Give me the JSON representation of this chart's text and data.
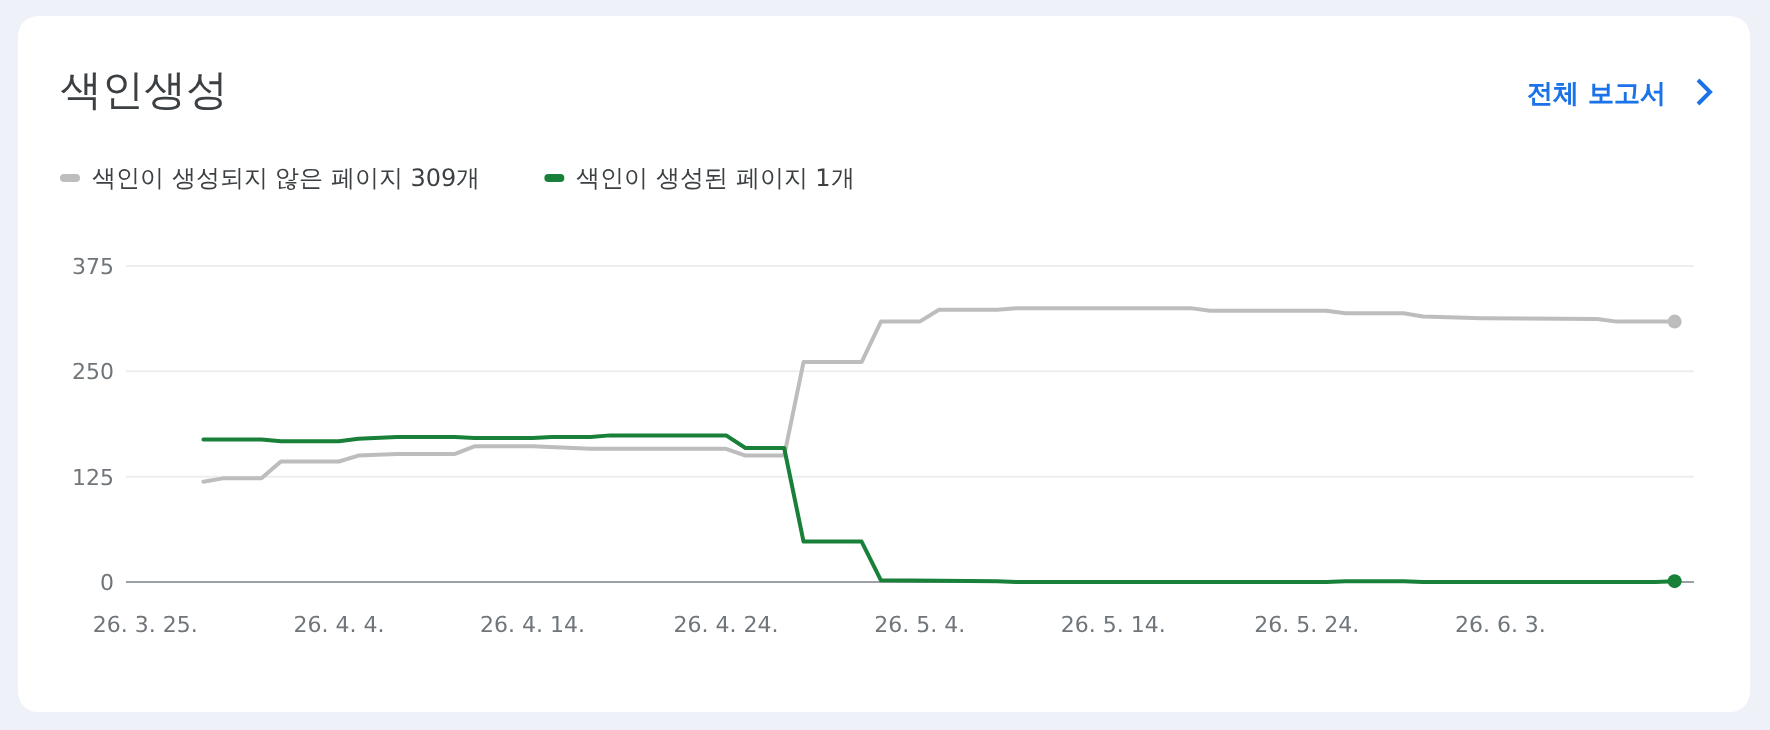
{
  "chart_data": {
    "type": "line",
    "title": "색인생성",
    "annotations": [
      "전체 보고서"
    ],
    "legend": "top left",
    "grid": "y",
    "xlim": [
      "--03-24",
      "--06-13"
    ],
    "xticks": [
      {
        "value": "--03-25",
        "label": "26. 3. 25."
      },
      {
        "value": "--04-04",
        "label": "26. 4. 4."
      },
      {
        "value": "--04-14",
        "label": "26. 4. 14."
      },
      {
        "value": "--04-24",
        "label": "26. 4. 24."
      },
      {
        "value": "--05-04",
        "label": "26. 5. 4."
      },
      {
        "value": "--05-14",
        "label": "26. 5. 14."
      },
      {
        "value": "--05-24",
        "label": "26. 5. 24."
      },
      {
        "value": "--06-03",
        "label": "26. 6. 3."
      }
    ],
    "ylim": [
      0,
      375
    ],
    "yticks": [
      0,
      125,
      250,
      375
    ],
    "series": [
      {
        "name": "색인이 생성되지 않은 페이지 309개",
        "color": "#bdbdbd",
        "x": [
          "--03-28",
          "--03-29",
          "--03-31",
          "--04-01",
          "--04-04",
          "--04-05",
          "--04-07",
          "--04-10",
          "--04-11",
          "--04-14",
          "--04-17",
          "--04-24",
          "--04-25",
          "--04-27",
          "--04-28",
          "--05-01",
          "--05-02",
          "--05-04",
          "--05-05",
          "--05-08",
          "--05-09",
          "--05-18",
          "--05-19",
          "--05-25",
          "--05-26",
          "--05-29",
          "--05-30",
          "--06-02",
          "--06-08",
          "--06-09",
          "--06-12"
        ],
        "values": [
          119,
          123,
          123,
          143,
          143,
          150,
          152,
          152,
          161,
          161,
          158,
          158,
          150,
          150,
          261,
          261,
          309,
          309,
          323,
          323,
          325,
          325,
          322,
          322,
          319,
          319,
          315,
          313,
          312,
          309,
          309
        ]
      },
      {
        "name": "색인이 생성된 페이지 1개",
        "color": "#188038",
        "x": [
          "--03-28",
          "--03-31",
          "--04-01",
          "--04-04",
          "--04-05",
          "--04-07",
          "--04-10",
          "--04-11",
          "--04-14",
          "--04-15",
          "--04-17",
          "--04-18",
          "--04-24",
          "--04-25",
          "--04-27",
          "--04-28",
          "--05-01",
          "--05-02",
          "--05-08",
          "--05-09",
          "--05-25",
          "--05-26",
          "--05-29",
          "--05-30",
          "--06-11",
          "--06-12"
        ],
        "values": [
          169,
          169,
          167,
          167,
          170,
          172,
          172,
          171,
          171,
          172,
          172,
          174,
          174,
          159,
          159,
          48,
          48,
          2,
          1,
          0,
          0,
          1,
          1,
          0,
          0,
          1
        ]
      }
    ]
  }
}
